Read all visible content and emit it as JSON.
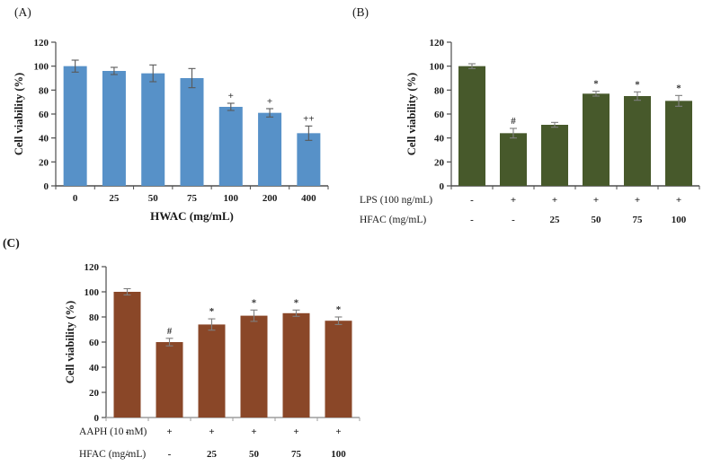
{
  "chart_data": [
    {
      "panel_label": "(A)",
      "type": "bar",
      "title": "",
      "ylabel": "Cell viability (%)",
      "xlabel": "HWAC (mg/mL)",
      "ylim": [
        0,
        120
      ],
      "ytick_step": 20,
      "grid": false,
      "legend": "none",
      "bar_color": "#5791c8",
      "error_color": "#595959",
      "categories": [
        "0",
        "25",
        "50",
        "75",
        "100",
        "200",
        "400"
      ],
      "values": [
        100,
        96,
        94,
        90,
        66,
        61,
        44
      ],
      "errors": [
        5,
        3,
        7,
        8,
        3,
        3.5,
        6
      ],
      "annotations": [
        "",
        "",
        "",
        "",
        "+",
        "+",
        "++"
      ]
    },
    {
      "panel_label": "(B)",
      "type": "bar",
      "title": "",
      "ylabel": "Cell viability (%)",
      "xlabel": "",
      "ylim": [
        0,
        120
      ],
      "ytick_step": 20,
      "grid": false,
      "legend": "none",
      "bar_color": "#47592b",
      "error_color": "#7f7f7f",
      "values": [
        100,
        44,
        51,
        77,
        75,
        71
      ],
      "errors": [
        2,
        4,
        2,
        2,
        3.5,
        4.5
      ],
      "annotations": [
        "",
        "#",
        "",
        "*",
        "*",
        "*"
      ],
      "xrows": [
        {
          "label": "LPS (100 ng/mL)",
          "values": [
            "-",
            "+",
            "+",
            "+",
            "+",
            "+"
          ]
        },
        {
          "label": "HFAC  (mg/mL)",
          "values": [
            "-",
            "-",
            "25",
            "50",
            "75",
            "100"
          ]
        }
      ]
    },
    {
      "panel_label": "(C)",
      "type": "bar",
      "title": "",
      "ylabel": "Cell viability (%)",
      "xlabel": "",
      "ylim": [
        0,
        120
      ],
      "ytick_step": 20,
      "grid": false,
      "legend": "none",
      "bar_color": "#8a4728",
      "error_color": "#7f7f7f",
      "values": [
        100,
        60,
        74,
        81,
        83,
        77
      ],
      "errors": [
        2.5,
        3,
        4.5,
        4.5,
        2.5,
        3
      ],
      "annotations": [
        "",
        "#",
        "*",
        "*",
        "*",
        "*"
      ],
      "xrows": [
        {
          "label": "AAPH (10 mM)",
          "values": [
            "-",
            "+",
            "+",
            "+",
            "+",
            "+"
          ]
        },
        {
          "label": "HFAC  (mg/mL)",
          "values": [
            "-",
            "-",
            "25",
            "50",
            "75",
            "100"
          ]
        }
      ]
    }
  ]
}
